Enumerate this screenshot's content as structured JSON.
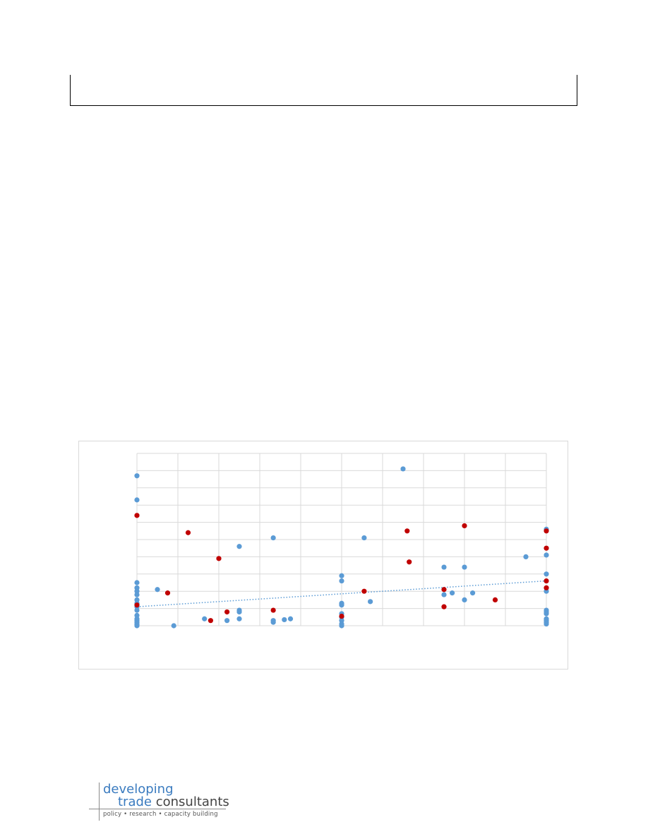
{
  "logo": {
    "line1": "developing",
    "line2a": "trade",
    "line2b": "consultants",
    "tagline": "policy  •  research  •  capacity building"
  },
  "colors": {
    "blue": "#5b9bd5",
    "red": "#c00000",
    "grid": "#d9d9d9",
    "trend": "#5b9bd5"
  },
  "chart_data": {
    "type": "scatter",
    "title": "",
    "xlabel": "",
    "ylabel": "",
    "xlim": [
      0,
      10
    ],
    "ylim": [
      0,
      10
    ],
    "grid": true,
    "legend": "none",
    "trendline": {
      "series": 0,
      "style": "dotted",
      "y_at_xmin": 1.1,
      "y_at_xmax": 2.6
    },
    "series": [
      {
        "color": "#5b9bd5",
        "points": [
          [
            0,
            8.7
          ],
          [
            0,
            7.3
          ],
          [
            0,
            2.5
          ],
          [
            0,
            2.2
          ],
          [
            0,
            2.0
          ],
          [
            0,
            1.8
          ],
          [
            0,
            1.5
          ],
          [
            0,
            1.3
          ],
          [
            0,
            1.1
          ],
          [
            0,
            0.9
          ],
          [
            0,
            0.6
          ],
          [
            0,
            0.4
          ],
          [
            0,
            0.3
          ],
          [
            0,
            0.2
          ],
          [
            0,
            0.1
          ],
          [
            0,
            0.05
          ],
          [
            0,
            0.0
          ],
          [
            0.5,
            2.1
          ],
          [
            0.9,
            0.0
          ],
          [
            1.65,
            0.4
          ],
          [
            2.2,
            0.3
          ],
          [
            2.5,
            0.9
          ],
          [
            2.5,
            0.8
          ],
          [
            2.5,
            0.4
          ],
          [
            2.5,
            4.6
          ],
          [
            3.33,
            5.1
          ],
          [
            3.33,
            0.3
          ],
          [
            3.33,
            0.2
          ],
          [
            3.6,
            0.35
          ],
          [
            3.75,
            0.4
          ],
          [
            5,
            2.9
          ],
          [
            5,
            2.6
          ],
          [
            5,
            1.3
          ],
          [
            5,
            1.2
          ],
          [
            5,
            0.7
          ],
          [
            5,
            0.5
          ],
          [
            5,
            0.3
          ],
          [
            5,
            0.1
          ],
          [
            5,
            0.0
          ],
          [
            5.55,
            5.1
          ],
          [
            5.7,
            1.4
          ],
          [
            6.5,
            9.1
          ],
          [
            7.5,
            3.4
          ],
          [
            7.5,
            1.8
          ],
          [
            7.7,
            1.9
          ],
          [
            8,
            3.4
          ],
          [
            8,
            1.5
          ],
          [
            8.2,
            1.9
          ],
          [
            9.5,
            4.0
          ],
          [
            10,
            5.6
          ],
          [
            10,
            4.1
          ],
          [
            10,
            3.0
          ],
          [
            10,
            2.0
          ],
          [
            10,
            0.9
          ],
          [
            10,
            0.8
          ],
          [
            10,
            0.7
          ],
          [
            10,
            0.4
          ],
          [
            10,
            0.3
          ],
          [
            10,
            0.2
          ],
          [
            10,
            0.1
          ]
        ]
      },
      {
        "color": "#c00000",
        "points": [
          [
            0,
            6.4
          ],
          [
            0,
            1.2
          ],
          [
            0.75,
            1.9
          ],
          [
            1.25,
            5.4
          ],
          [
            2.0,
            3.9
          ],
          [
            1.8,
            0.3
          ],
          [
            2.2,
            0.8
          ],
          [
            3.33,
            0.9
          ],
          [
            5,
            0.55
          ],
          [
            5.55,
            2.0
          ],
          [
            6.6,
            5.5
          ],
          [
            6.65,
            3.7
          ],
          [
            7.5,
            2.1
          ],
          [
            7.5,
            1.1
          ],
          [
            8,
            5.8
          ],
          [
            8.75,
            1.5
          ],
          [
            10,
            5.5
          ],
          [
            10,
            4.5
          ],
          [
            10,
            2.6
          ],
          [
            10,
            2.2
          ]
        ]
      }
    ]
  }
}
